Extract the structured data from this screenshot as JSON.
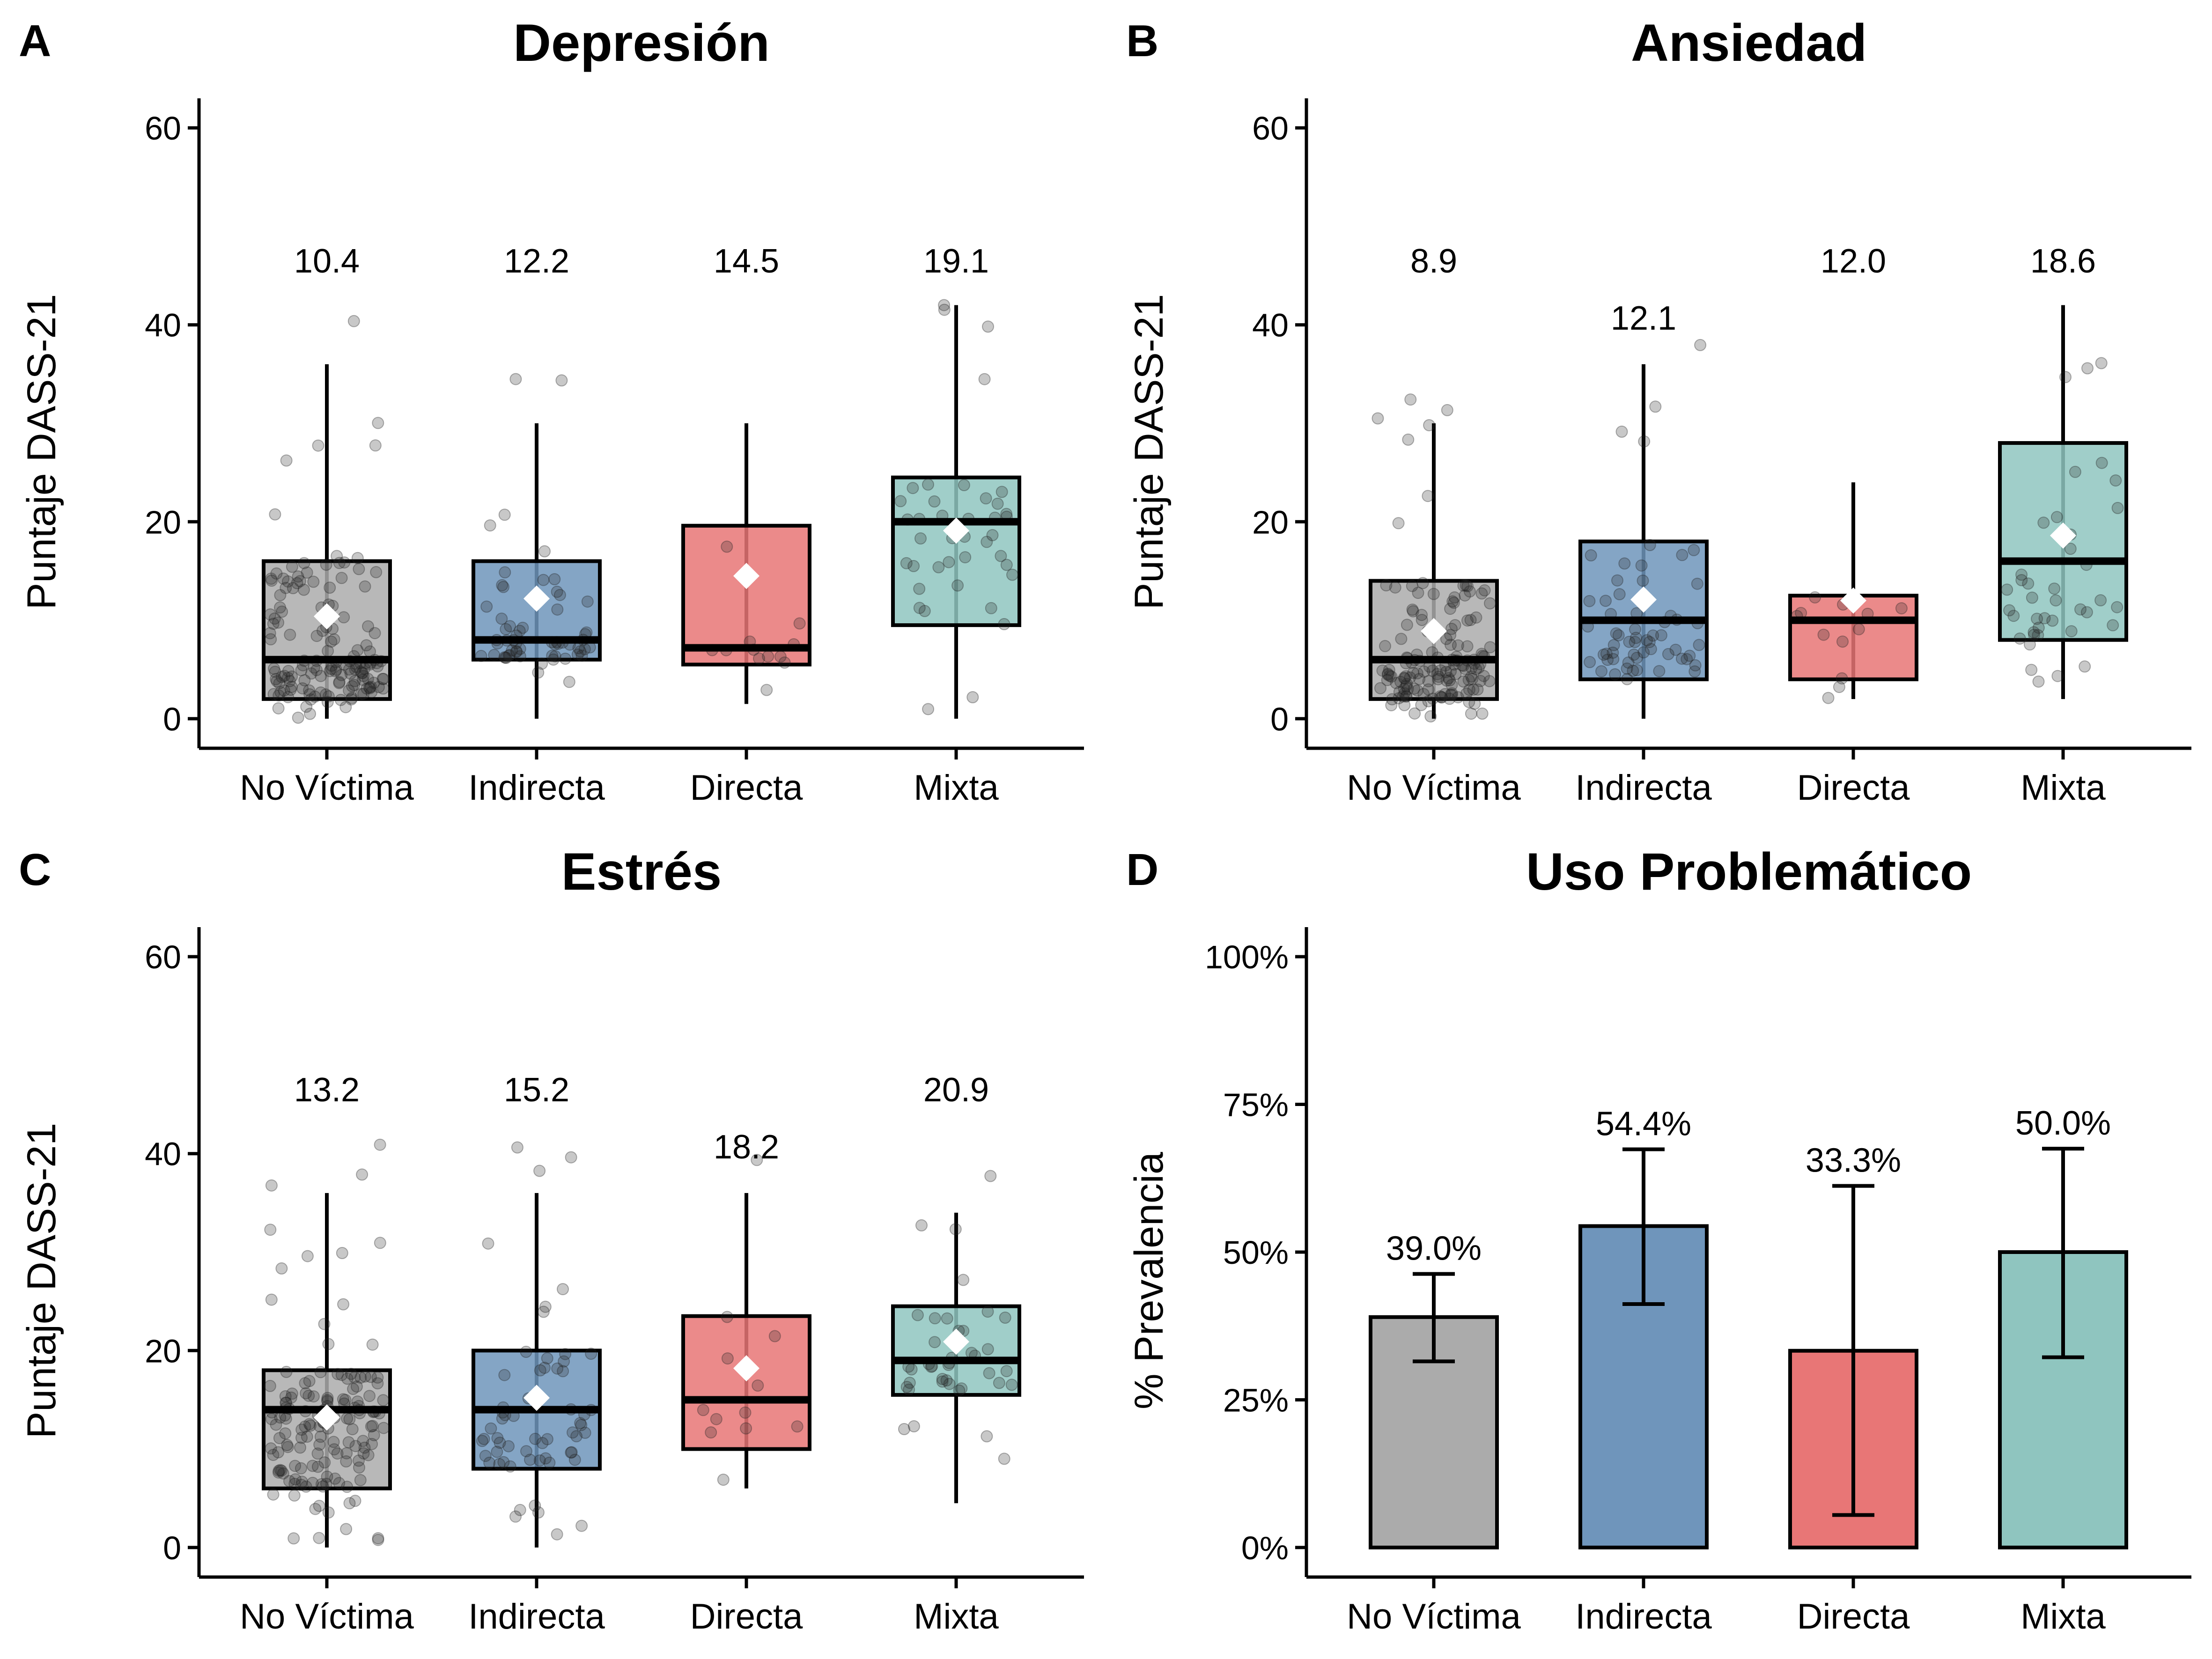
{
  "chart_data": [
    {
      "panel": "A",
      "type": "box",
      "title": "Depresión",
      "ylabel": "Puntaje DASS-21",
      "ylim": [
        -3,
        63
      ],
      "yticks": [
        0,
        20,
        40,
        60
      ],
      "ytick_labels": [
        "0",
        "20",
        "40",
        "60"
      ],
      "categories": [
        "No Víctima",
        "Indirecta",
        "Directa",
        "Mixta"
      ],
      "boxes": [
        {
          "q1": 2,
          "median": 6,
          "q3": 16,
          "whisker_low": 0,
          "whisker_high": 36,
          "mean": 10.4,
          "mean_label": "10.4",
          "label_y": 46.5,
          "n": 150
        },
        {
          "q1": 6,
          "median": 8,
          "q3": 16,
          "whisker_low": 0,
          "whisker_high": 30,
          "mean": 12.2,
          "mean_label": "12.2",
          "label_y": 46.5,
          "n": 60
        },
        {
          "q1": 5.5,
          "median": 7.2,
          "q3": 19.6,
          "whisker_low": 1.5,
          "whisker_high": 30,
          "mean": 14.5,
          "mean_label": "14.5",
          "label_y": 46.5,
          "n": 12
        },
        {
          "q1": 9.5,
          "median": 20,
          "q3": 24.5,
          "whisker_low": 0,
          "whisker_high": 42,
          "mean": 19.1,
          "mean_label": "19.1",
          "label_y": 46.5,
          "n": 40
        }
      ]
    },
    {
      "panel": "B",
      "type": "box",
      "title": "Ansiedad",
      "ylabel": "Puntaje DASS-21",
      "ylim": [
        -3,
        63
      ],
      "yticks": [
        0,
        20,
        40,
        60
      ],
      "ytick_labels": [
        "0",
        "20",
        "40",
        "60"
      ],
      "categories": [
        "No Víctima",
        "Indirecta",
        "Directa",
        "Mixta"
      ],
      "boxes": [
        {
          "q1": 2,
          "median": 6,
          "q3": 14,
          "whisker_low": 0,
          "whisker_high": 30,
          "mean": 8.9,
          "mean_label": "8.9",
          "label_y": 46.5,
          "n": 150
        },
        {
          "q1": 4,
          "median": 10,
          "q3": 18,
          "whisker_low": 0,
          "whisker_high": 36,
          "mean": 12.1,
          "mean_label": "12.1",
          "label_y": 40.7,
          "n": 60
        },
        {
          "q1": 4,
          "median": 10,
          "q3": 12.5,
          "whisker_low": 2,
          "whisker_high": 24,
          "mean": 12.0,
          "mean_label": "12.0",
          "label_y": 46.5,
          "n": 12
        },
        {
          "q1": 8,
          "median": 16,
          "q3": 28,
          "whisker_low": 2,
          "whisker_high": 42,
          "mean": 18.6,
          "mean_label": "18.6",
          "label_y": 46.5,
          "n": 40
        }
      ]
    },
    {
      "panel": "C",
      "type": "box",
      "title": "Estrés",
      "ylabel": "Puntaje DASS-21",
      "ylim": [
        -3,
        63
      ],
      "yticks": [
        0,
        20,
        40,
        60
      ],
      "ytick_labels": [
        "0",
        "20",
        "40",
        "60"
      ],
      "categories": [
        "No Víctima",
        "Indirecta",
        "Directa",
        "Mixta"
      ],
      "boxes": [
        {
          "q1": 6,
          "median": 14,
          "q3": 18,
          "whisker_low": 0,
          "whisker_high": 36,
          "mean": 13.2,
          "mean_label": "13.2",
          "label_y": 46.5,
          "n": 150
        },
        {
          "q1": 8,
          "median": 14,
          "q3": 20,
          "whisker_low": 0,
          "whisker_high": 36,
          "mean": 15.2,
          "mean_label": "15.2",
          "label_y": 46.5,
          "n": 60
        },
        {
          "q1": 10,
          "median": 15,
          "q3": 23.5,
          "whisker_low": 6,
          "whisker_high": 36,
          "mean": 18.2,
          "mean_label": "18.2",
          "label_y": 40.7,
          "n": 12
        },
        {
          "q1": 15.5,
          "median": 19,
          "q3": 24.5,
          "whisker_low": 4.5,
          "whisker_high": 34,
          "mean": 20.9,
          "mean_label": "20.9",
          "label_y": 46.5,
          "n": 40
        }
      ]
    },
    {
      "panel": "D",
      "type": "bar",
      "title": "Uso Problemático",
      "ylabel": "% Prevalencia",
      "ylim": [
        -5,
        105
      ],
      "yticks": [
        0,
        25,
        50,
        75,
        100
      ],
      "ytick_labels": [
        "0%",
        "25%",
        "50%",
        "75%",
        "100%"
      ],
      "categories": [
        "No Víctima",
        "Indirecta",
        "Directa",
        "Mixta"
      ],
      "values": [
        39.0,
        54.4,
        33.3,
        50.0
      ],
      "value_labels": [
        "39.0%",
        "54.4%",
        "33.3%",
        "50.0%"
      ],
      "ci_low": [
        31.5,
        41.2,
        5.5,
        32.2
      ],
      "ci_high": [
        46.3,
        67.4,
        61.2,
        67.5
      ]
    }
  ],
  "colors": {
    "groups": [
      "#ababab",
      "#6f95bb",
      "#e87676",
      "#8fc5bf"
    ],
    "box_alpha": 0.85,
    "points": "#222222",
    "mean_marker": "#ffffff",
    "axis": "#000000"
  }
}
